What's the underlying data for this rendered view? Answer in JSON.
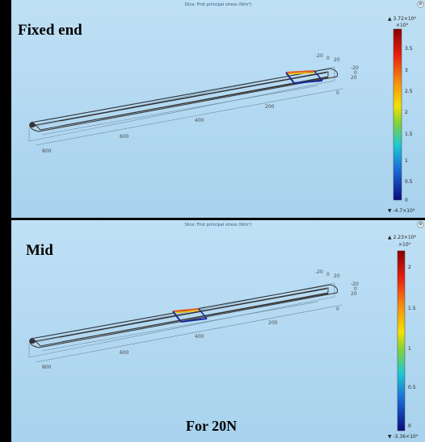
{
  "panels": [
    {
      "slice_title": "Slice: First principal stress (N/m²)",
      "label": "Fixed end",
      "colorbar": {
        "max_label": "▲ 3.72×10⁴",
        "exp_label": "×10⁴",
        "min_label": "▼ -4.7×10⁴",
        "ticks": [
          "3.5",
          "3",
          "2.5",
          "2",
          "1.5",
          "1",
          "0.5",
          "0"
        ]
      },
      "axis_labels": [
        "-20",
        "0",
        "20",
        "-20",
        "0",
        "20",
        "0",
        "200",
        "400",
        "600",
        "800"
      ]
    },
    {
      "slice_title": "Slice: First principal stress (N/m²)",
      "label": "Mid",
      "caption": "For 20N",
      "colorbar": {
        "max_label": "▲ 2.23×10⁴",
        "exp_label": "×10⁴",
        "min_label": "▼ -3.36×10⁴",
        "ticks": [
          "2",
          "1.5",
          "1",
          "0.5",
          "0"
        ]
      },
      "axis_labels": [
        "-20",
        "0",
        "20",
        "-20",
        "0",
        "20",
        "0",
        "200",
        "400",
        "600",
        "800"
      ]
    }
  ],
  "colors": {
    "background": "#a8d2ee",
    "frame": "#000000",
    "beam_wire": "#333333",
    "slice_hot": "#e85a1a",
    "slice_warm": "#f5c400",
    "slice_cold": "#1a2a9a"
  },
  "icons": [
    "settings-icon"
  ]
}
